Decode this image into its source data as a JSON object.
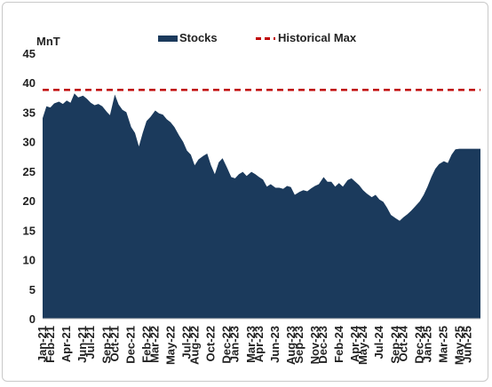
{
  "chart_data": {
    "type": "area",
    "ylabel": "MnT",
    "ylim": [
      0,
      45
    ],
    "yticks": [
      0,
      5,
      10,
      15,
      20,
      25,
      30,
      35,
      40,
      45
    ],
    "x_range": [
      2021.0,
      2025.55
    ],
    "xtick_labels": [
      "Jan-21",
      "Feb-21",
      "Apr-21",
      "Jun-21",
      "Jul-21",
      "Sep-21",
      "Oct-21",
      "Dec-21",
      "Feb-22",
      "Mar-22",
      "May-22",
      "Jul-22",
      "Aug-22",
      "Oct-22",
      "Dec-22",
      "Jan-23",
      "Mar-23",
      "Apr-23",
      "Jun-23",
      "Aug-23",
      "Sep-23",
      "Nov-23",
      "Dec-23",
      "Feb-24",
      "Apr-24",
      "May-24",
      "Jul-24",
      "Sep-24",
      "Oct-24",
      "Dec-24",
      "Jan-25",
      "Mar-25",
      "May-25",
      "Jun-25"
    ],
    "xtick_values": [
      2021.0,
      2021.083,
      2021.25,
      2021.417,
      2021.5,
      2021.667,
      2021.75,
      2021.917,
      2022.083,
      2022.167,
      2022.333,
      2022.5,
      2022.583,
      2022.75,
      2022.917,
      2023.0,
      2023.167,
      2023.25,
      2023.417,
      2023.583,
      2023.667,
      2023.833,
      2023.917,
      2024.083,
      2024.25,
      2024.333,
      2024.5,
      2024.667,
      2024.75,
      2024.917,
      2025.0,
      2025.167,
      2025.333,
      2025.417
    ],
    "legend_position": "top-center",
    "grid": false,
    "series": [
      {
        "name": "Stocks",
        "kind": "area",
        "color": "#1b3a5c",
        "x": [
          2021.0,
          2021.04,
          2021.08,
          2021.12,
          2021.17,
          2021.21,
          2021.25,
          2021.29,
          2021.33,
          2021.37,
          2021.42,
          2021.46,
          2021.5,
          2021.54,
          2021.58,
          2021.62,
          2021.67,
          2021.7,
          2021.75,
          2021.79,
          2021.83,
          2021.87,
          2021.92,
          2021.96,
          2022.0,
          2022.04,
          2022.08,
          2022.12,
          2022.17,
          2022.21,
          2022.25,
          2022.29,
          2022.33,
          2022.37,
          2022.42,
          2022.46,
          2022.5,
          2022.54,
          2022.58,
          2022.62,
          2022.67,
          2022.71,
          2022.75,
          2022.79,
          2022.83,
          2022.87,
          2022.92,
          2022.96,
          2023.0,
          2023.04,
          2023.08,
          2023.12,
          2023.17,
          2023.21,
          2023.25,
          2023.29,
          2023.33,
          2023.37,
          2023.42,
          2023.46,
          2023.5,
          2023.54,
          2023.58,
          2023.62,
          2023.67,
          2023.71,
          2023.75,
          2023.79,
          2023.83,
          2023.87,
          2023.92,
          2023.96,
          2024.0,
          2024.04,
          2024.08,
          2024.12,
          2024.17,
          2024.21,
          2024.25,
          2024.29,
          2024.33,
          2024.37,
          2024.42,
          2024.46,
          2024.5,
          2024.54,
          2024.58,
          2024.62,
          2024.67,
          2024.71,
          2024.75,
          2024.79,
          2024.83,
          2024.87,
          2024.92,
          2024.96,
          2025.0,
          2025.04,
          2025.08,
          2025.12,
          2025.17,
          2025.21,
          2025.25,
          2025.29,
          2025.33,
          2025.37,
          2025.42,
          2025.46,
          2025.5,
          2025.55
        ],
        "values": [
          34.0,
          36.0,
          35.8,
          36.5,
          36.8,
          36.4,
          37.0,
          36.6,
          38.2,
          37.5,
          37.8,
          37.3,
          36.6,
          36.2,
          36.4,
          36.0,
          35.0,
          34.5,
          38.0,
          36.3,
          35.4,
          35.0,
          32.5,
          31.5,
          29.2,
          31.5,
          33.5,
          34.2,
          35.3,
          34.8,
          34.6,
          33.8,
          33.3,
          32.5,
          31.0,
          30.0,
          28.5,
          27.8,
          26.0,
          27.0,
          27.6,
          28.0,
          26.0,
          24.5,
          26.5,
          27.2,
          25.5,
          24.0,
          23.8,
          24.5,
          24.9,
          24.2,
          24.9,
          24.5,
          24.0,
          23.6,
          22.4,
          22.8,
          22.2,
          22.2,
          22.0,
          22.5,
          22.3,
          21.0,
          21.5,
          21.8,
          21.6,
          22.1,
          22.5,
          22.8,
          24.0,
          23.2,
          23.2,
          22.4,
          23.0,
          22.4,
          23.5,
          23.8,
          23.2,
          22.6,
          21.8,
          21.2,
          20.6,
          21.0,
          20.2,
          19.8,
          18.8,
          17.6,
          17.0,
          16.6,
          17.2,
          17.7,
          18.3,
          19.0,
          19.9,
          21.0,
          22.4,
          24.0,
          25.4,
          26.2,
          26.7,
          26.4,
          27.8,
          28.7,
          28.8,
          28.8,
          28.8,
          28.8,
          28.8,
          28.8
        ]
      },
      {
        "name": "Historical Max",
        "kind": "hline",
        "color": "#c00000",
        "value": 38.8
      }
    ]
  }
}
